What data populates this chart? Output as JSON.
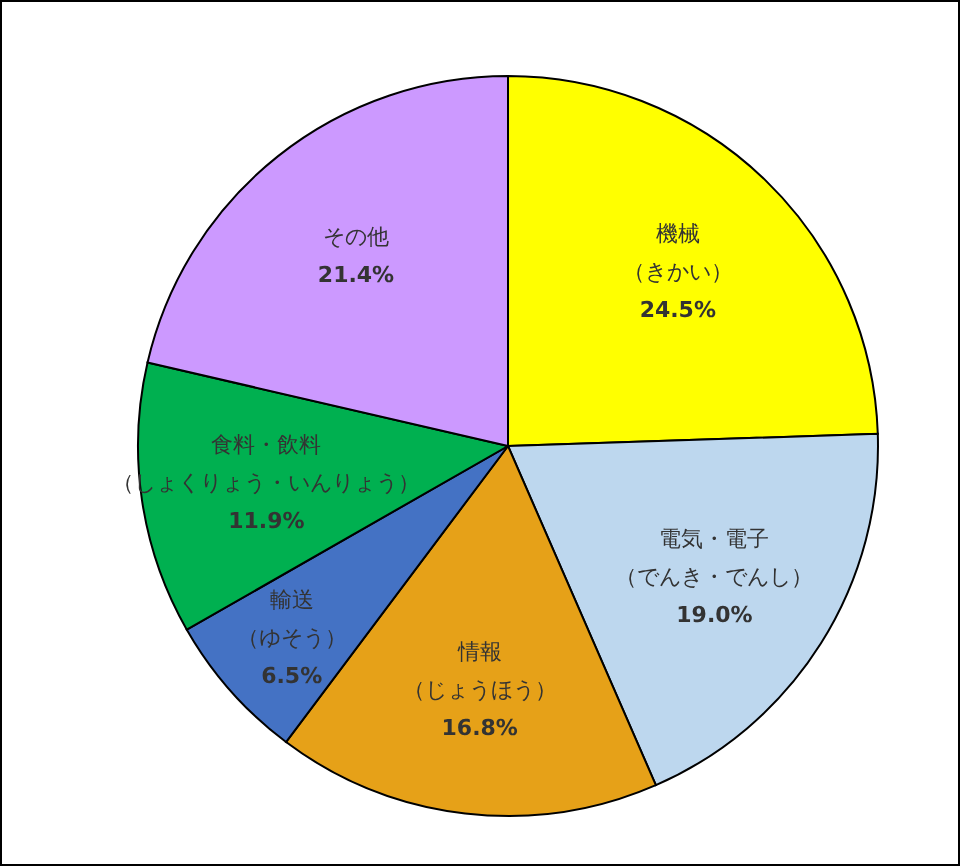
{
  "chart_data": {
    "type": "pie",
    "categories": [
      "機械（きかい）",
      "電気・電子（でんき・でんし）",
      "情報（じょうほう）",
      "輸送（ゆそう）",
      "食料・飲料（しょくりょう・いんりょう）",
      "その他"
    ],
    "values": [
      24.5,
      19.0,
      16.8,
      6.5,
      11.9,
      21.4
    ],
    "value_labels": [
      "24.5%",
      "19.0%",
      "16.8%",
      "6.5%",
      "11.9%",
      "21.4%"
    ],
    "colors": [
      "#ffff00",
      "#bdd7ee",
      "#e6a118",
      "#4472c4",
      "#00b050",
      "#cc99ff"
    ],
    "legend": false
  }
}
